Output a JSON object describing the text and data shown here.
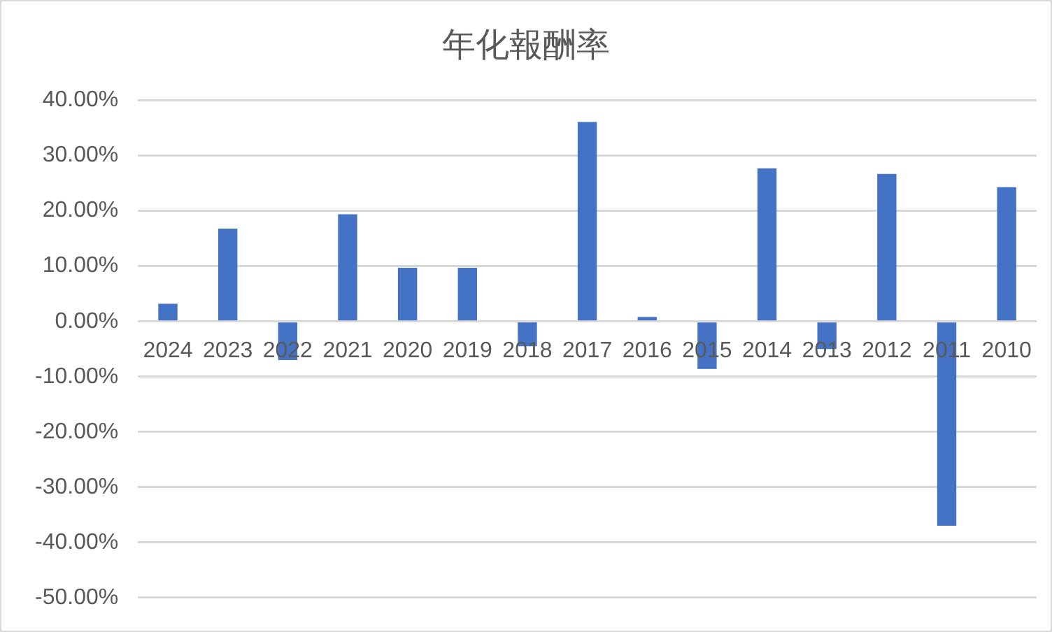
{
  "chart_data": {
    "type": "bar",
    "title": "年化報酬率",
    "categories": [
      "2024",
      "2023",
      "2022",
      "2021",
      "2020",
      "2019",
      "2018",
      "2017",
      "2016",
      "2015",
      "2014",
      "2013",
      "2012",
      "2011",
      "2010"
    ],
    "values": [
      3.2,
      16.8,
      -7.0,
      19.4,
      9.7,
      9.7,
      -4.5,
      36.1,
      0.8,
      -8.6,
      27.7,
      -5.0,
      26.7,
      -37.0,
      24.3
    ],
    "color": "#4472c4",
    "ylim": [
      -50,
      40
    ],
    "yticks": [
      {
        "value": -50,
        "label": "-50.00%"
      },
      {
        "value": -40,
        "label": "-40.00%"
      },
      {
        "value": -30,
        "label": "-30.00%"
      },
      {
        "value": -20,
        "label": "-20.00%"
      },
      {
        "value": -10,
        "label": "-10.00%"
      },
      {
        "value": 0,
        "label": "0.00%"
      },
      {
        "value": 10,
        "label": "10.00%"
      },
      {
        "value": 20,
        "label": "20.00%"
      },
      {
        "value": 30,
        "label": "30.00%"
      },
      {
        "value": 40,
        "label": "40.00%"
      }
    ],
    "grid": "y",
    "legend": false
  }
}
